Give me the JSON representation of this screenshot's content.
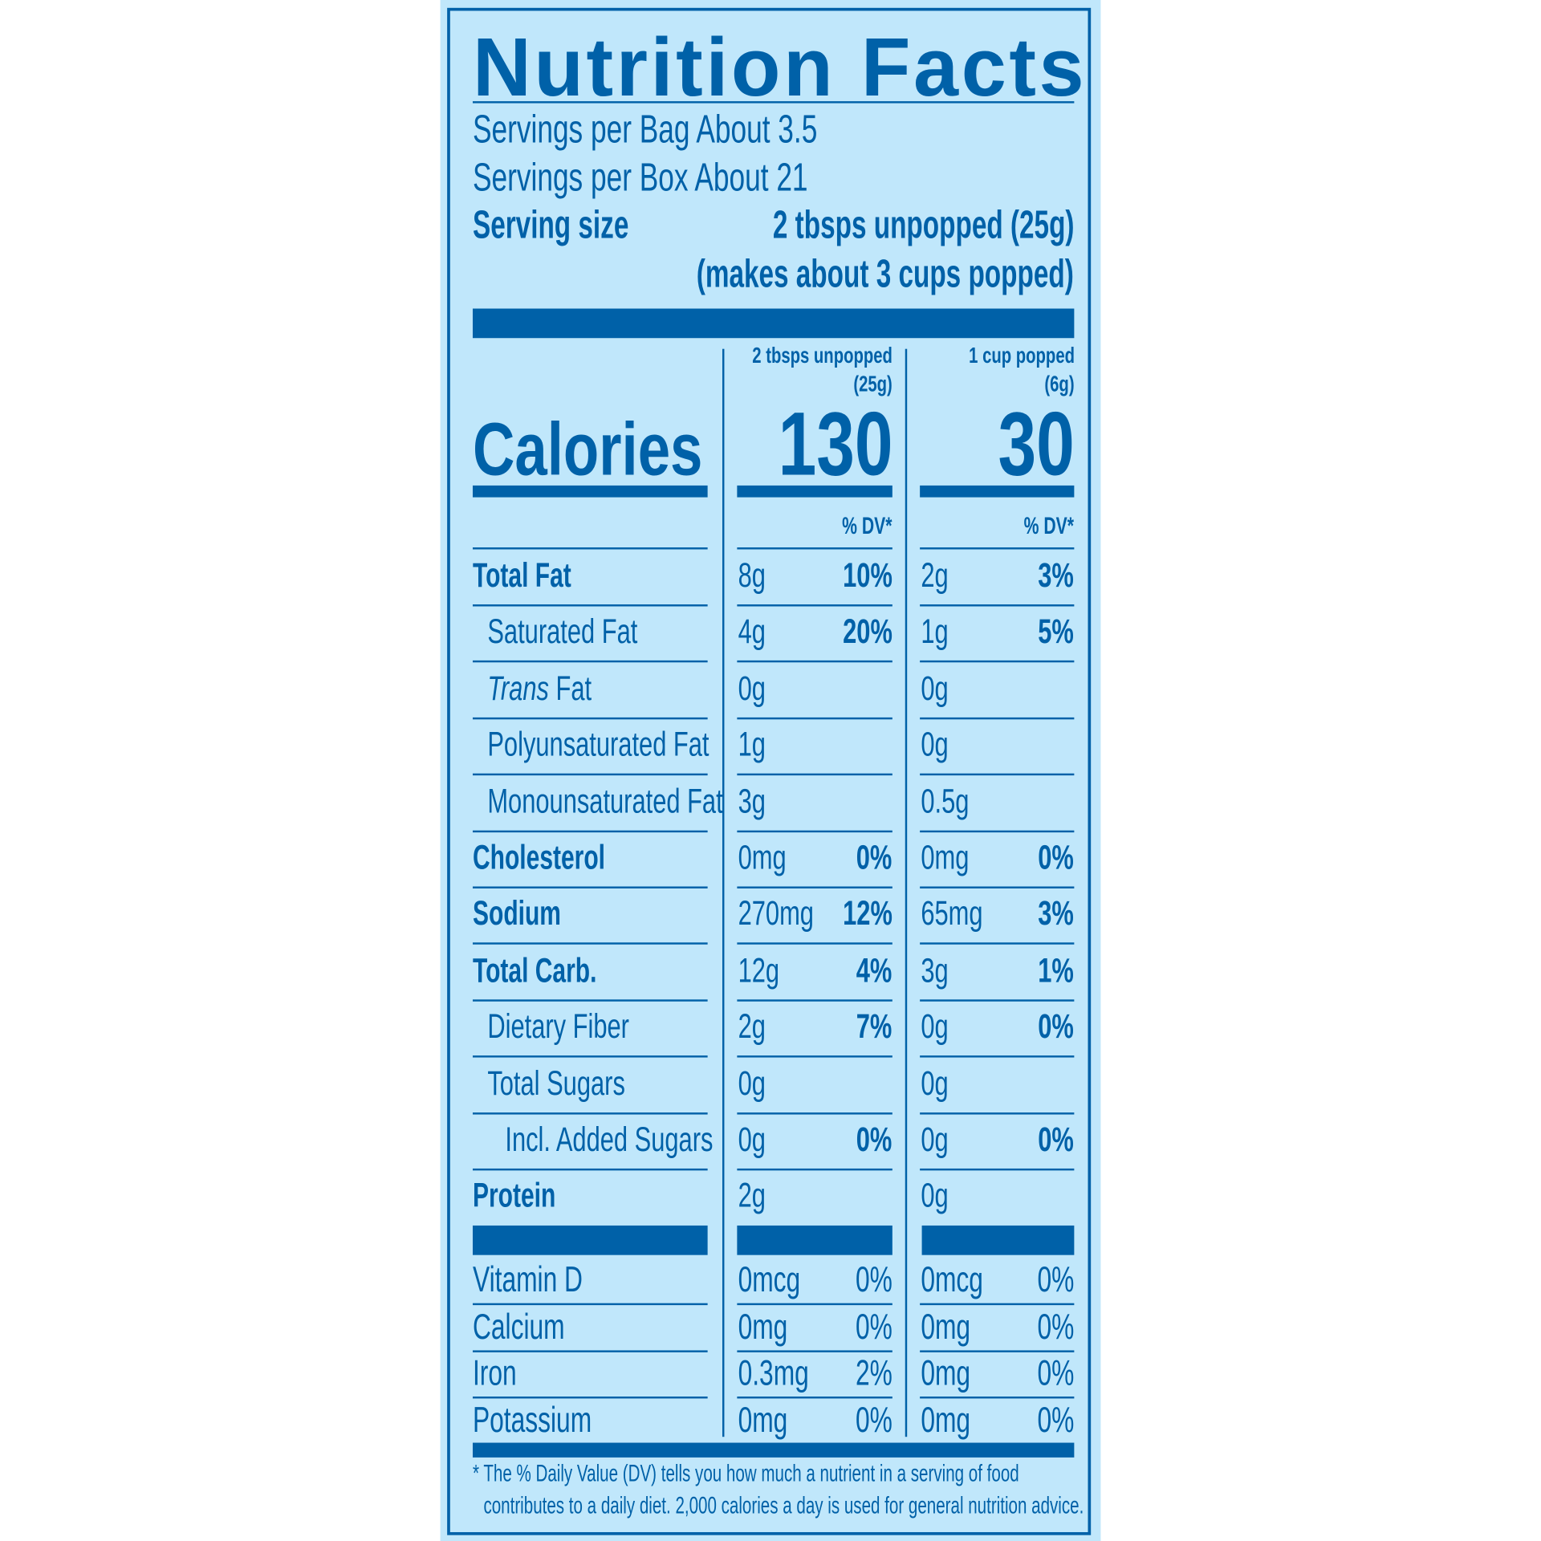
{
  "colors": {
    "ink": "#0061a8",
    "background": "#c0e7fb"
  },
  "title": "Nutrition Facts",
  "servings_per_bag": "Servings per Bag About 3.5",
  "servings_per_box": "Servings per Box About 21",
  "serving_size_label": "Serving size",
  "serving_size_value": "2 tbsps unpopped (25g)",
  "serving_size_note": "(makes about 3 cups popped)",
  "columns": [
    {
      "header_line1": "2 tbsps unpopped",
      "header_line2": "(25g)",
      "calories": "130",
      "dv_header": "% DV*"
    },
    {
      "header_line1": "1 cup popped",
      "header_line2": "(6g)",
      "calories": "30",
      "dv_header": "% DV*"
    }
  ],
  "calories_label": "Calories",
  "nutrients": [
    {
      "label": "Total Fat",
      "bold": true,
      "indent": 0,
      "values": [
        [
          "8g",
          "10%"
        ],
        [
          "2g",
          "3%"
        ]
      ]
    },
    {
      "label": "Saturated Fat",
      "bold": false,
      "indent": 1,
      "values": [
        [
          "4g",
          "20%"
        ],
        [
          "1g",
          "5%"
        ]
      ]
    },
    {
      "label_italic": "Trans",
      "label": " Fat",
      "bold": false,
      "indent": 1,
      "values": [
        [
          "0g",
          ""
        ],
        [
          "0g",
          ""
        ]
      ]
    },
    {
      "label": "Polyunsaturated Fat",
      "bold": false,
      "indent": 1,
      "values": [
        [
          "1g",
          ""
        ],
        [
          "0g",
          ""
        ]
      ]
    },
    {
      "label": "Monounsaturated Fat",
      "bold": false,
      "indent": 1,
      "values": [
        [
          "3g",
          ""
        ],
        [
          "0.5g",
          ""
        ]
      ]
    },
    {
      "label": "Cholesterol",
      "bold": true,
      "indent": 0,
      "values": [
        [
          "0mg",
          "0%"
        ],
        [
          "0mg",
          "0%"
        ]
      ]
    },
    {
      "label": "Sodium",
      "bold": true,
      "indent": 0,
      "values": [
        [
          "270mg",
          "12%"
        ],
        [
          "65mg",
          "3%"
        ]
      ]
    },
    {
      "label": "Total Carb.",
      "bold": true,
      "indent": 0,
      "values": [
        [
          "12g",
          "4%"
        ],
        [
          "3g",
          "1%"
        ]
      ]
    },
    {
      "label": "Dietary Fiber",
      "bold": false,
      "indent": 1,
      "values": [
        [
          "2g",
          "7%"
        ],
        [
          "0g",
          "0%"
        ]
      ]
    },
    {
      "label": "Total Sugars",
      "bold": false,
      "indent": 1,
      "values": [
        [
          "0g",
          ""
        ],
        [
          "0g",
          ""
        ]
      ]
    },
    {
      "label": "Incl. Added Sugars",
      "bold": false,
      "indent": 2,
      "values": [
        [
          "0g",
          "0%"
        ],
        [
          "0g",
          "0%"
        ]
      ]
    },
    {
      "label": "Protein",
      "bold": true,
      "indent": 0,
      "values": [
        [
          "2g",
          ""
        ],
        [
          "0g",
          ""
        ]
      ]
    }
  ],
  "micronutrients": [
    {
      "label": "Vitamin D",
      "values": [
        [
          "0mcg",
          "0%"
        ],
        [
          "0mcg",
          "0%"
        ]
      ]
    },
    {
      "label": "Calcium",
      "values": [
        [
          "0mg",
          "0%"
        ],
        [
          "0mg",
          "0%"
        ]
      ]
    },
    {
      "label": "Iron",
      "values": [
        [
          "0.3mg",
          "2%"
        ],
        [
          "0mg",
          "0%"
        ]
      ]
    },
    {
      "label": "Potassium",
      "values": [
        [
          "0mg",
          "0%"
        ],
        [
          "0mg",
          "0%"
        ]
      ]
    }
  ],
  "footnote_line1": "* The % Daily Value (DV) tells you how much a nutrient in a serving of food",
  "footnote_line2": "contributes to a daily diet. 2,000 calories a day is used for general nutrition advice."
}
